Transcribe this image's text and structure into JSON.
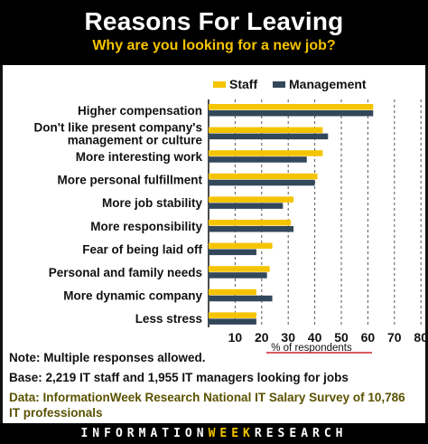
{
  "header": {
    "title": "Reasons For Leaving",
    "subtitle": "Why are you looking for a new job?"
  },
  "chart_data": {
    "type": "bar",
    "orientation": "horizontal",
    "title": "Reasons For Leaving",
    "subtitle": "Why are you looking for a new job?",
    "categories": [
      [
        "Higher compensation"
      ],
      [
        "Don't like present company's",
        "management or culture"
      ],
      [
        "More interesting work"
      ],
      [
        "More personal fulfillment"
      ],
      [
        "More job stability"
      ],
      [
        "More responsibility"
      ],
      [
        "Fear of being laid off"
      ],
      [
        "Personal and family needs"
      ],
      [
        "More dynamic company"
      ],
      [
        "Less stress"
      ]
    ],
    "series": [
      {
        "name": "Staff",
        "color": "#f5c400",
        "values": [
          62,
          43,
          43,
          41,
          32,
          31,
          24,
          23,
          18,
          18
        ]
      },
      {
        "name": "Management",
        "color": "#33475b",
        "values": [
          62,
          45,
          37,
          40,
          28,
          32,
          18,
          22,
          24,
          18
        ]
      }
    ],
    "xlabel": "% of respondents",
    "xlim": [
      0,
      80
    ],
    "xticks": [
      10,
      20,
      30,
      40,
      50,
      60,
      70,
      80
    ],
    "grid": true,
    "legend": "top-right"
  },
  "notes": {
    "multiple": "Note: Multiple responses allowed.",
    "base": "Base: 2,219 IT staff and 1,955 IT managers looking for jobs",
    "data_source": "Data: InformationWeek Research National IT Salary Survey of 10,786 IT professionals"
  },
  "footer": {
    "part1": "INFORMATION",
    "part2": "WEEK",
    "part3": "RESEARCH"
  }
}
